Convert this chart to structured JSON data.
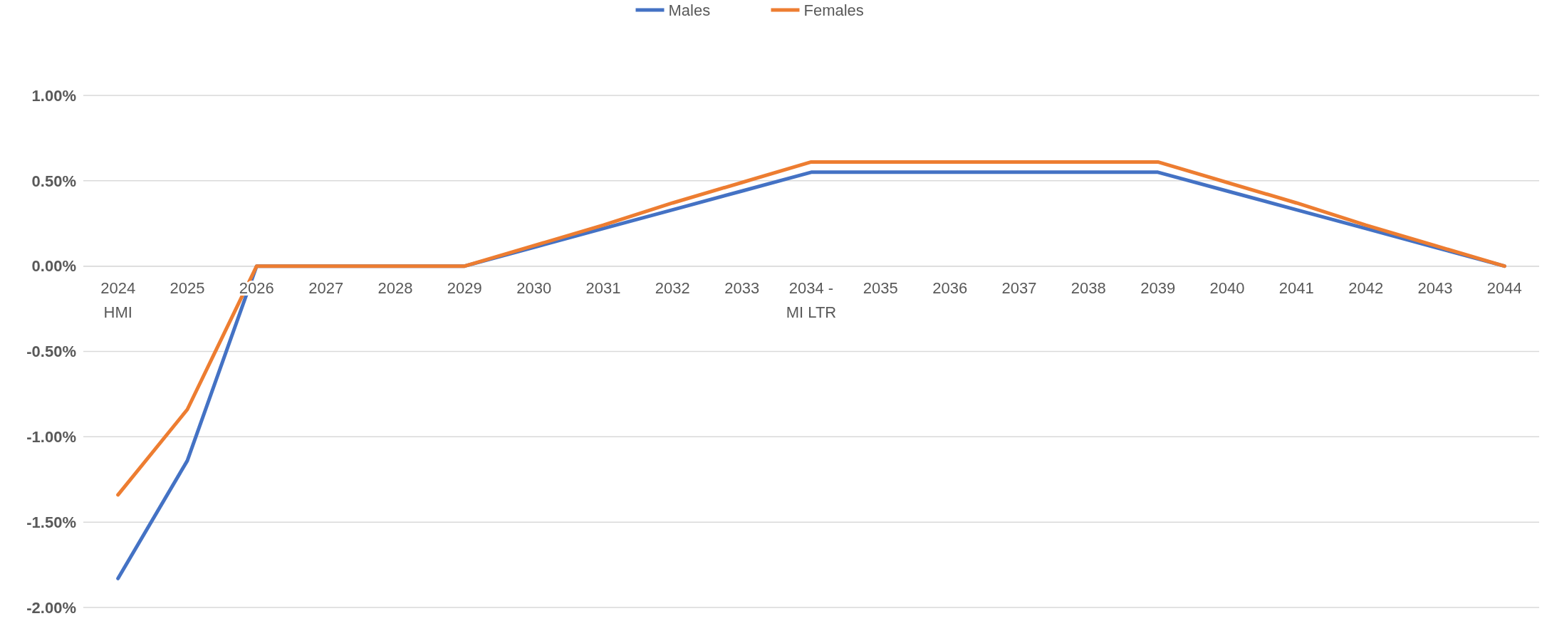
{
  "chart_data": {
    "type": "line",
    "categories": [
      "2024\nHMI",
      "2025",
      "2026",
      "2027",
      "2028",
      "2029",
      "2030",
      "2031",
      "2032",
      "2033",
      "2034 -\nMI LTR",
      "2035",
      "2036",
      "2037",
      "2038",
      "2039",
      "2040",
      "2041",
      "2042",
      "2043",
      "2044"
    ],
    "series": [
      {
        "name": "Males",
        "color": "#4472c4",
        "values": [
          -1.83,
          -1.14,
          0,
          0,
          0,
          0,
          0.11,
          0.22,
          0.33,
          0.44,
          0.55,
          0.55,
          0.55,
          0.55,
          0.55,
          0.55,
          0.44,
          0.33,
          0.22,
          0.11,
          0
        ]
      },
      {
        "name": "Females",
        "color": "#ed7d31",
        "values": [
          -1.34,
          -0.84,
          0,
          0,
          0,
          0,
          0.12,
          0.24,
          0.37,
          0.49,
          0.61,
          0.61,
          0.61,
          0.61,
          0.61,
          0.61,
          0.49,
          0.37,
          0.24,
          0.12,
          0
        ]
      }
    ],
    "ylim": [
      -2,
      1
    ],
    "yticks": [
      {
        "value": -2,
        "label": "-2.00%"
      },
      {
        "value": -1.5,
        "label": "-1.50%"
      },
      {
        "value": -1,
        "label": "-1.00%"
      },
      {
        "value": -0.5,
        "label": "-0.50%"
      },
      {
        "value": 0,
        "label": "0.00%"
      },
      {
        "value": 0.5,
        "label": "0.50%"
      },
      {
        "value": 1,
        "label": "1.00%"
      }
    ],
    "grid": "y",
    "legend": "top",
    "line_style": "solid"
  }
}
